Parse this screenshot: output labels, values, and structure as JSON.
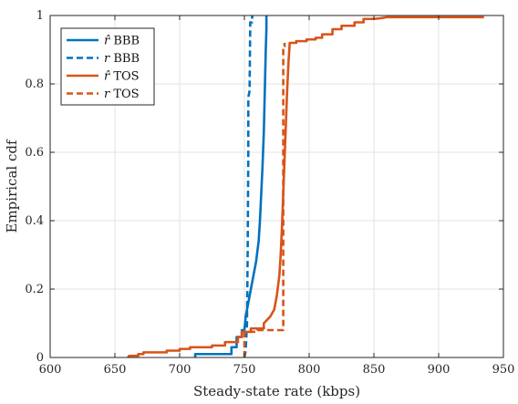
{
  "chart_data": {
    "type": "line",
    "title": "",
    "xlabel": "Steady-state rate (kbps)",
    "ylabel": "Empirical cdf",
    "xlim": [
      600,
      950
    ],
    "ylim": [
      0,
      1
    ],
    "xticks": [
      "600",
      "650",
      "700",
      "750",
      "800",
      "850",
      "900",
      "950"
    ],
    "yticks": [
      "0",
      "0.2",
      "0.4",
      "0.6",
      "0.8",
      "1"
    ],
    "grid": true,
    "legend_position": "top-left",
    "series": [
      {
        "name": "r̂ BBB",
        "name_parts": [
          "r̂",
          " BBB"
        ],
        "color": "#0072BD",
        "style": "solid",
        "points": [
          [
            712,
            0
          ],
          [
            712,
            0.01
          ],
          [
            740,
            0.01
          ],
          [
            740,
            0.03
          ],
          [
            744,
            0.03
          ],
          [
            744,
            0.06
          ],
          [
            748,
            0.06
          ],
          [
            748,
            0.08
          ],
          [
            750,
            0.08
          ],
          [
            751,
            0.12
          ],
          [
            753,
            0.16
          ],
          [
            755,
            0.2
          ],
          [
            757,
            0.24
          ],
          [
            759,
            0.28
          ],
          [
            761,
            0.34
          ],
          [
            762,
            0.4
          ],
          [
            763,
            0.48
          ],
          [
            764,
            0.56
          ],
          [
            765,
            0.66
          ],
          [
            765.5,
            0.74
          ],
          [
            766,
            0.82
          ],
          [
            766.5,
            0.9
          ],
          [
            767,
            0.96
          ],
          [
            767,
            1
          ]
        ]
      },
      {
        "name": "r BBB",
        "name_parts": [
          "r",
          " BBB"
        ],
        "color": "#0072BD",
        "style": "dashed",
        "points": [
          [
            750,
            0
          ],
          [
            751,
            0.02
          ],
          [
            752,
            0.1
          ],
          [
            752.5,
            0.3
          ],
          [
            753,
            0.6
          ],
          [
            753,
            0.76
          ],
          [
            754,
            0.78
          ],
          [
            754.5,
            0.98
          ],
          [
            756,
            0.98
          ],
          [
            756,
            1
          ]
        ]
      },
      {
        "name": "r̂ TOS",
        "name_parts": [
          "r̂",
          " TOS"
        ],
        "color": "#D95319",
        "style": "solid",
        "points": [
          [
            660,
            0
          ],
          [
            661,
            0.005
          ],
          [
            668,
            0.005
          ],
          [
            668,
            0.01
          ],
          [
            672,
            0.01
          ],
          [
            672,
            0.015
          ],
          [
            690,
            0.015
          ],
          [
            690,
            0.02
          ],
          [
            700,
            0.02
          ],
          [
            700,
            0.025
          ],
          [
            708,
            0.025
          ],
          [
            708,
            0.03
          ],
          [
            725,
            0.03
          ],
          [
            725,
            0.035
          ],
          [
            735,
            0.035
          ],
          [
            735,
            0.045
          ],
          [
            745,
            0.045
          ],
          [
            745,
            0.06
          ],
          [
            748,
            0.06
          ],
          [
            748,
            0.075
          ],
          [
            755,
            0.075
          ],
          [
            755,
            0.085
          ],
          [
            765,
            0.085
          ],
          [
            765,
            0.1
          ],
          [
            770,
            0.12
          ],
          [
            773,
            0.14
          ],
          [
            775,
            0.18
          ],
          [
            777,
            0.24
          ],
          [
            778,
            0.3
          ],
          [
            779,
            0.38
          ],
          [
            780,
            0.48
          ],
          [
            781,
            0.58
          ],
          [
            782,
            0.68
          ],
          [
            783,
            0.78
          ],
          [
            784,
            0.86
          ],
          [
            785,
            0.92
          ],
          [
            790,
            0.92
          ],
          [
            790,
            0.925
          ],
          [
            798,
            0.925
          ],
          [
            798,
            0.93
          ],
          [
            805,
            0.93
          ],
          [
            805,
            0.935
          ],
          [
            810,
            0.935
          ],
          [
            810,
            0.945
          ],
          [
            818,
            0.945
          ],
          [
            818,
            0.96
          ],
          [
            825,
            0.96
          ],
          [
            825,
            0.97
          ],
          [
            835,
            0.97
          ],
          [
            835,
            0.98
          ],
          [
            842,
            0.98
          ],
          [
            842,
            0.99
          ],
          [
            850,
            0.99
          ],
          [
            855,
            0.992
          ],
          [
            860,
            0.995
          ],
          [
            935,
            0.995
          ]
        ]
      },
      {
        "name": "r TOS",
        "name_parts": [
          "r",
          " TOS"
        ],
        "color": "#D95319",
        "style": "dashed",
        "points": [
          [
            750,
            0
          ],
          [
            750,
            0.075
          ],
          [
            760,
            0.075
          ],
          [
            760,
            0.08
          ],
          [
            780,
            0.08
          ],
          [
            780,
            0.91
          ],
          [
            781,
            0.91
          ],
          [
            781,
            0.92
          ]
        ]
      }
    ]
  }
}
